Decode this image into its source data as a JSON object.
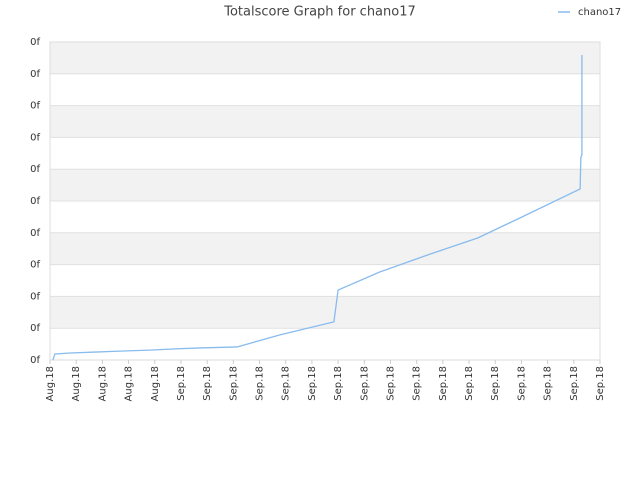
{
  "chart_data": {
    "type": "line",
    "title": "Totalscore Graph for chano17",
    "x": [
      0.11,
      0.19,
      0.76,
      1.72,
      2.67,
      3.82,
      4.77,
      5.73,
      7.14,
      8.78,
      10.84,
      11.0,
      12.6,
      14.51,
      16.34,
      17.95,
      20.24,
      20.27,
      20.31,
      20.31
    ],
    "series": [
      {
        "name": "chano17",
        "color": "#88bbee",
        "values": [
          0,
          0.19,
          0.22,
          0.25,
          0.28,
          0.31,
          0.35,
          0.38,
          0.41,
          0.79,
          1.2,
          2.2,
          2.77,
          3.33,
          3.84,
          4.47,
          5.38,
          6.38,
          6.45,
          9.59
        ]
      }
    ],
    "xlim": [
      0,
      21
    ],
    "xticks": [
      {
        "value": 0,
        "label": "Aug.18"
      },
      {
        "value": 1,
        "label": "Aug.18"
      },
      {
        "value": 2,
        "label": "Aug.18"
      },
      {
        "value": 3,
        "label": "Aug.18"
      },
      {
        "value": 4,
        "label": "Aug.18"
      },
      {
        "value": 5,
        "label": "Sep.18"
      },
      {
        "value": 6,
        "label": "Sep.18"
      },
      {
        "value": 7,
        "label": "Sep.18"
      },
      {
        "value": 8,
        "label": "Sep.18"
      },
      {
        "value": 9,
        "label": "Sep.18"
      },
      {
        "value": 10,
        "label": "Sep.18"
      },
      {
        "value": 11,
        "label": "Sep.18"
      },
      {
        "value": 12,
        "label": "Sep.18"
      },
      {
        "value": 13,
        "label": "Sep.18"
      },
      {
        "value": 14,
        "label": "Sep.18"
      },
      {
        "value": 15,
        "label": "Sep.18"
      },
      {
        "value": 16,
        "label": "Sep.18"
      },
      {
        "value": 17,
        "label": "Sep.18"
      },
      {
        "value": 18,
        "label": "Sep.18"
      },
      {
        "value": 19,
        "label": "Sep.18"
      },
      {
        "value": 20,
        "label": "Sep.18"
      },
      {
        "value": 21,
        "label": "Sep.18"
      }
    ],
    "ylim": [
      0,
      10
    ],
    "yticks": [
      {
        "value": 0,
        "label": "0f"
      },
      {
        "value": 1,
        "label": "0f"
      },
      {
        "value": 2,
        "label": "0f"
      },
      {
        "value": 3,
        "label": "0f"
      },
      {
        "value": 4,
        "label": "0f"
      },
      {
        "value": 5,
        "label": "0f"
      },
      {
        "value": 6,
        "label": "0f"
      },
      {
        "value": 7,
        "label": "0f"
      },
      {
        "value": 8,
        "label": "0f"
      },
      {
        "value": 9,
        "label": "0f"
      },
      {
        "value": 10,
        "label": "0f"
      }
    ],
    "grid": true,
    "legend": "top-right"
  }
}
